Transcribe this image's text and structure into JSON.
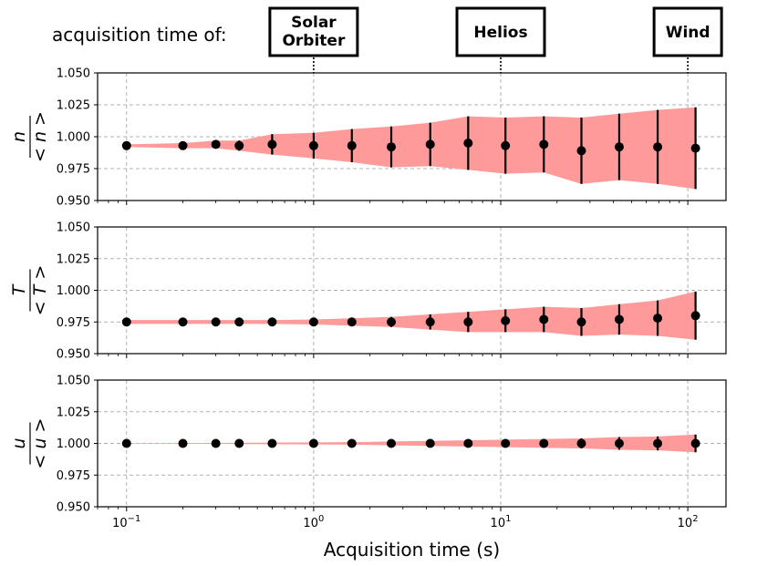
{
  "header": {
    "label": "acquisition time of:",
    "missions": [
      {
        "name_lines": [
          "Solar",
          "Orbiter"
        ],
        "t": 1.0
      },
      {
        "name_lines": [
          "Helios"
        ],
        "t": 10.0
      },
      {
        "name_lines": [
          "Wind"
        ],
        "t": 100.0
      }
    ]
  },
  "chart_data": {
    "type": "scatter",
    "x_scale": "log",
    "xlim": [
      0.07,
      160
    ],
    "xlabel": "Acquisition time (s)",
    "x_ticks": [
      {
        "value": 0.1,
        "base": "10",
        "exp": "−1"
      },
      {
        "value": 1,
        "base": "10",
        "exp": "0"
      },
      {
        "value": 10,
        "base": "10",
        "exp": "1"
      },
      {
        "value": 100,
        "base": "10",
        "exp": "2"
      }
    ],
    "grid": true,
    "x": [
      0.1,
      0.2,
      0.3,
      0.4,
      0.6,
      1.0,
      1.6,
      2.6,
      4.2,
      6.7,
      10.6,
      17.0,
      27.0,
      43.0,
      69.0,
      110.0
    ],
    "panels": [
      {
        "ylabel_num": "n",
        "ylabel_den": "< n >",
        "ylim": [
          0.95,
          1.05
        ],
        "y_ticks": [
          "0.950",
          "0.975",
          "1.000",
          "1.025",
          "1.050"
        ],
        "y_tick_values": [
          0.95,
          0.975,
          1.0,
          1.025,
          1.05
        ],
        "y": [
          0.993,
          0.993,
          0.994,
          0.993,
          0.994,
          0.993,
          0.993,
          0.992,
          0.994,
          0.995,
          0.993,
          0.994,
          0.989,
          0.992,
          0.992,
          0.991
        ],
        "err": [
          0.001,
          0.002,
          0.003,
          0.004,
          0.008,
          0.01,
          0.013,
          0.016,
          0.017,
          0.021,
          0.022,
          0.022,
          0.026,
          0.026,
          0.029,
          0.032
        ]
      },
      {
        "ylabel_num": "T",
        "ylabel_den": "< T >",
        "ylim": [
          0.95,
          1.05
        ],
        "y_ticks": [
          "0.950",
          "0.975",
          "1.000",
          "1.025",
          "1.050"
        ],
        "y_tick_values": [
          0.95,
          0.975,
          1.0,
          1.025,
          1.05
        ],
        "y": [
          0.975,
          0.975,
          0.975,
          0.975,
          0.975,
          0.975,
          0.975,
          0.975,
          0.975,
          0.975,
          0.976,
          0.977,
          0.975,
          0.977,
          0.978,
          0.98
        ],
        "err": [
          0.0015,
          0.0015,
          0.0015,
          0.0015,
          0.0015,
          0.002,
          0.003,
          0.004,
          0.006,
          0.008,
          0.009,
          0.01,
          0.011,
          0.012,
          0.014,
          0.019
        ]
      },
      {
        "ylabel_num": "u",
        "ylabel_den": "< u >",
        "ylim": [
          0.95,
          1.05
        ],
        "y_ticks": [
          "0.950",
          "0.975",
          "1.000",
          "1.025",
          "1.050"
        ],
        "y_tick_values": [
          0.95,
          0.975,
          1.0,
          1.025,
          1.05
        ],
        "y": [
          1.0,
          1.0,
          1.0,
          1.0,
          1.0,
          1.0,
          1.0,
          1.0,
          1.0,
          1.0,
          1.0,
          1.0,
          1.0,
          1.0,
          1.0,
          1.0
        ],
        "err": [
          0.0002,
          0.0003,
          0.0004,
          0.0005,
          0.0006,
          0.0008,
          0.001,
          0.0015,
          0.002,
          0.0025,
          0.003,
          0.0035,
          0.004,
          0.005,
          0.0055,
          0.007
        ]
      }
    ],
    "colors": {
      "band": "#ff9a9a",
      "points": "#000000",
      "grid": "#b0b0b0",
      "leader": "#000000"
    }
  }
}
